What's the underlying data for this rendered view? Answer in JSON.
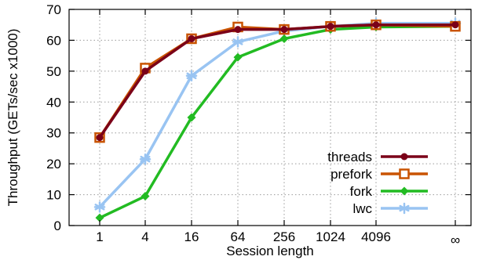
{
  "chart_data": {
    "type": "line",
    "xlabel": "Session length",
    "ylabel": "Throughput (GETs/sec x1000)",
    "categories": [
      "1",
      "4",
      "16",
      "64",
      "256",
      "1024",
      "4096",
      "∞"
    ],
    "ylim": [
      0,
      70
    ],
    "yticks": [
      0,
      10,
      20,
      30,
      40,
      50,
      60,
      70
    ],
    "grid": true,
    "legend_position": "bottom-right",
    "series": [
      {
        "name": "threads",
        "color": "#7b0018",
        "marker": "circle",
        "values": [
          28.5,
          50.0,
          60.5,
          63.5,
          63.5,
          64.5,
          65.0,
          65.0
        ]
      },
      {
        "name": "prefork",
        "color": "#c95300",
        "marker": "square",
        "values": [
          28.5,
          51.0,
          60.5,
          64.3,
          63.5,
          64.5,
          65.0,
          64.5
        ]
      },
      {
        "name": "fork",
        "color": "#22bb22",
        "marker": "diamond",
        "values": [
          2.5,
          9.5,
          35.0,
          54.5,
          60.5,
          63.5,
          64.3,
          64.5
        ]
      },
      {
        "name": "lwc",
        "color": "#99c4f2",
        "marker": "asterisk",
        "values": [
          6.0,
          21.5,
          48.5,
          59.5,
          63.0,
          64.5,
          65.5,
          65.5
        ]
      }
    ]
  }
}
